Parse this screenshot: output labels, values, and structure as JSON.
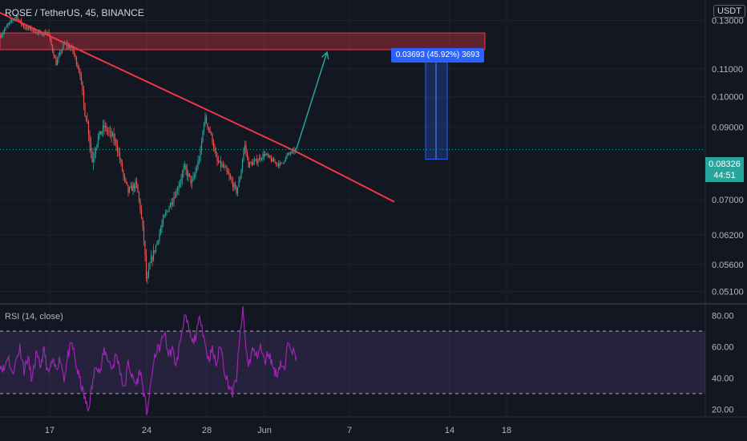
{
  "header": {
    "symbol_line": "ROSE / TetherUS, 45, BINANCE",
    "currency": "USDT"
  },
  "last_price": {
    "value": "0.08326",
    "countdown": "44:51"
  },
  "measure": {
    "label": "0.03693 (45.92%) 3693"
  },
  "rsi_panel": {
    "title": "RSI (14, close)"
  },
  "chart_data": [
    {
      "type": "candlestick",
      "log_scale": true,
      "ylim": [
        0.049,
        0.1395
      ],
      "y_ticks": [
        {
          "value": 0.13,
          "label": "0.13000"
        },
        {
          "value": 0.11,
          "label": "0.11000"
        },
        {
          "value": 0.1,
          "label": "0.10000"
        },
        {
          "value": 0.09,
          "label": "0.09000"
        },
        {
          "value": 0.07,
          "label": "0.07000"
        },
        {
          "value": 0.062,
          "label": "0.06200"
        },
        {
          "value": 0.056,
          "label": "0.05600"
        },
        {
          "value": 0.051,
          "label": "0.05100"
        }
      ],
      "x_ticks": [
        "17",
        "24",
        "28",
        "Jun",
        "7",
        "14",
        "18"
      ],
      "price_path": [
        [
          0,
          0.123
        ],
        [
          10,
          0.128
        ],
        [
          20,
          0.132
        ],
        [
          30,
          0.127
        ],
        [
          40,
          0.126
        ],
        [
          50,
          0.124
        ],
        [
          60,
          0.125
        ],
        [
          65,
          0.118
        ],
        [
          70,
          0.112
        ],
        [
          75,
          0.116
        ],
        [
          80,
          0.12
        ],
        [
          90,
          0.118
        ],
        [
          95,
          0.113
        ],
        [
          100,
          0.108
        ],
        [
          105,
          0.096
        ],
        [
          110,
          0.09
        ],
        [
          115,
          0.08
        ],
        [
          120,
          0.085
        ],
        [
          125,
          0.088
        ],
        [
          130,
          0.09
        ],
        [
          140,
          0.087
        ],
        [
          145,
          0.085
        ],
        [
          150,
          0.08
        ],
        [
          155,
          0.075
        ],
        [
          160,
          0.072
        ],
        [
          170,
          0.074
        ],
        [
          175,
          0.068
        ],
        [
          180,
          0.06
        ],
        [
          183,
          0.052
        ],
        [
          187,
          0.056
        ],
        [
          195,
          0.06
        ],
        [
          205,
          0.066
        ],
        [
          215,
          0.07
        ],
        [
          220,
          0.072
        ],
        [
          230,
          0.078
        ],
        [
          240,
          0.074
        ],
        [
          250,
          0.082
        ],
        [
          255,
          0.093
        ],
        [
          260,
          0.09
        ],
        [
          265,
          0.086
        ],
        [
          270,
          0.08
        ],
        [
          280,
          0.078
        ],
        [
          290,
          0.074
        ],
        [
          295,
          0.072
        ],
        [
          300,
          0.076
        ],
        [
          305,
          0.085
        ],
        [
          310,
          0.079
        ],
        [
          320,
          0.08
        ],
        [
          330,
          0.082
        ],
        [
          340,
          0.08
        ],
        [
          350,
          0.079
        ],
        [
          360,
          0.082
        ],
        [
          370,
          0.08326
        ]
      ],
      "volatility": [
        [
          0,
          0.022
        ],
        [
          60,
          0.022
        ],
        [
          100,
          0.03
        ],
        [
          110,
          0.07
        ],
        [
          120,
          0.05
        ],
        [
          170,
          0.04
        ],
        [
          185,
          0.05
        ],
        [
          200,
          0.035
        ],
        [
          250,
          0.05
        ],
        [
          260,
          0.04
        ],
        [
          300,
          0.035
        ],
        [
          370,
          0.02
        ]
      ],
      "trendline": [
        [
          0,
          0.1335
        ],
        [
          370,
          0.0826
        ],
        [
          492,
          0.0695
        ]
      ],
      "resistance_zone": {
        "low": 0.1175,
        "high": 0.1245
      },
      "measure": {
        "from": 0.0805,
        "to": 0.1175
      },
      "projected_move": [
        [
          370,
          0.0835
        ],
        [
          408,
          0.1165
        ]
      ],
      "current_price": 0.08326,
      "colors": {
        "up": "#26a69a",
        "down": "#ef5350",
        "trendline": "#f23645",
        "zone": "#f23645",
        "measure": "#2962ff",
        "projection": "#26a69a",
        "price_line": "#26a69a"
      }
    },
    {
      "type": "line",
      "title": "RSI (14, close)",
      "ylim": [
        15,
        87
      ],
      "y_ticks": [
        80,
        60,
        40,
        20
      ],
      "y_tick_labels": [
        "80.00",
        "60.00",
        "40.00",
        "20.00"
      ],
      "bands": {
        "upper": 70,
        "lower": 30
      },
      "series": [
        {
          "values": [
            [
              0,
              49
            ],
            [
              5,
              45
            ],
            [
              10,
              55
            ],
            [
              15,
              42
            ],
            [
              20,
              51
            ],
            [
              25,
              60
            ],
            [
              30,
              45
            ],
            [
              35,
              53
            ],
            [
              40,
              38
            ],
            [
              45,
              55
            ],
            [
              50,
              47
            ],
            [
              55,
              58
            ],
            [
              60,
              42
            ],
            [
              65,
              50
            ],
            [
              70,
              46
            ],
            [
              75,
              53
            ],
            [
              80,
              40
            ],
            [
              85,
              55
            ],
            [
              90,
              62
            ],
            [
              95,
              48
            ],
            [
              100,
              38
            ],
            [
              105,
              28
            ],
            [
              110,
              19
            ],
            [
              115,
              35
            ],
            [
              120,
              50
            ],
            [
              125,
              43
            ],
            [
              130,
              58
            ],
            [
              135,
              52
            ],
            [
              140,
              46
            ],
            [
              145,
              55
            ],
            [
              150,
              45
            ],
            [
              155,
              32
            ],
            [
              160,
              50
            ],
            [
              165,
              40
            ],
            [
              170,
              36
            ],
            [
              175,
              45
            ],
            [
              180,
              28
            ],
            [
              183,
              18
            ],
            [
              187,
              30
            ],
            [
              190,
              45
            ],
            [
              195,
              57
            ],
            [
              200,
              60
            ],
            [
              205,
              70
            ],
            [
              210,
              55
            ],
            [
              215,
              58
            ],
            [
              220,
              48
            ],
            [
              225,
              64
            ],
            [
              230,
              80
            ],
            [
              235,
              72
            ],
            [
              240,
              62
            ],
            [
              245,
              68
            ],
            [
              250,
              80
            ],
            [
              255,
              64
            ],
            [
              260,
              52
            ],
            [
              265,
              58
            ],
            [
              270,
              48
            ],
            [
              275,
              62
            ],
            [
              280,
              45
            ],
            [
              285,
              36
            ],
            [
              290,
              30
            ],
            [
              295,
              40
            ],
            [
              300,
              70
            ],
            [
              303,
              84
            ],
            [
              307,
              58
            ],
            [
              310,
              48
            ],
            [
              315,
              58
            ],
            [
              320,
              54
            ],
            [
              325,
              60
            ],
            [
              330,
              50
            ],
            [
              335,
              57
            ],
            [
              340,
              48
            ],
            [
              345,
              42
            ],
            [
              350,
              50
            ],
            [
              355,
              44
            ],
            [
              360,
              65
            ],
            [
              365,
              58
            ],
            [
              370,
              52
            ]
          ],
          "color": "#9c27b0"
        }
      ]
    }
  ]
}
